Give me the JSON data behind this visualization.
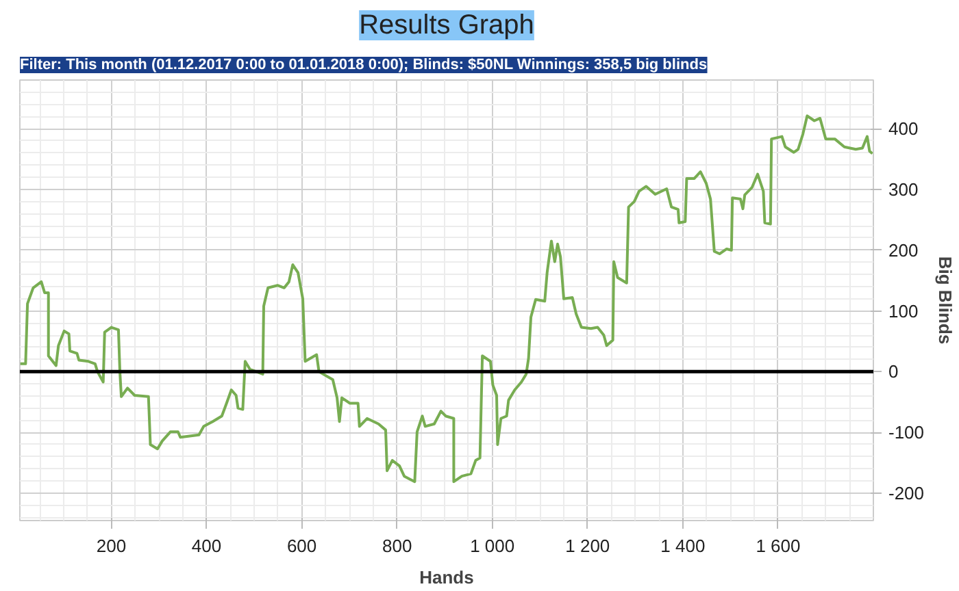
{
  "chart_data": {
    "type": "line",
    "title": "Results Graph",
    "subtitle": "Filter: This month (01.12.2017 0:00 to 01.01.2018 0:00); Blinds: $50NL Winnings: 358,5 big blinds",
    "xlabel": "Hands",
    "ylabel": "Big Blinds",
    "x": [
      9,
      20,
      24,
      36,
      53,
      60,
      68,
      68,
      84,
      89,
      101,
      111,
      113,
      128,
      132,
      152,
      166,
      171,
      183,
      186,
      200,
      215,
      218,
      221,
      234,
      249,
      278,
      282,
      297,
      307,
      324,
      340,
      345,
      384,
      394,
      413,
      432,
      442,
      452,
      462,
      466,
      476,
      481,
      491,
      518,
      520,
      529,
      549,
      563,
      573,
      581,
      592,
      602,
      607,
      631,
      636,
      665,
      674,
      679,
      684,
      701,
      718,
      721,
      737,
      761,
      776,
      779,
      790,
      805,
      815,
      837,
      842,
      853,
      859,
      878,
      892,
      902,
      919,
      919,
      936,
      955,
      965,
      974,
      979,
      996,
      1001,
      1009,
      1011,
      1018,
      1030,
      1034,
      1047,
      1061,
      1071,
      1076,
      1081,
      1091,
      1110,
      1115,
      1124,
      1131,
      1137,
      1143,
      1150,
      1168,
      1176,
      1187,
      1207,
      1221,
      1234,
      1240,
      1253,
      1255,
      1263,
      1282,
      1286,
      1298,
      1308,
      1323,
      1342,
      1366,
      1376,
      1390,
      1392,
      1405,
      1408,
      1424,
      1437,
      1449,
      1458,
      1466,
      1477,
      1492,
      1502,
      1504,
      1521,
      1526,
      1530,
      1545,
      1557,
      1569,
      1572,
      1584,
      1586,
      1608,
      1615,
      1633,
      1642,
      1652,
      1661,
      1676,
      1688,
      1700,
      1719,
      1739,
      1763,
      1777,
      1787,
      1792,
      1798
    ],
    "series": [
      {
        "color": "#78ad52",
        "values": [
          13,
          13,
          112,
          138,
          148,
          130,
          130,
          26,
          10,
          43,
          67,
          62,
          34,
          30,
          19,
          17,
          13,
          0,
          -17,
          65,
          73,
          69,
          0,
          -41,
          -27,
          -39,
          -41,
          -120,
          -127,
          -114,
          -99,
          -99,
          -108,
          -104,
          -90,
          -82,
          -73,
          -52,
          -30,
          -39,
          -60,
          -62,
          17,
          4,
          -4,
          108,
          138,
          142,
          138,
          148,
          176,
          163,
          120,
          17,
          28,
          0,
          -13,
          -43,
          -82,
          -43,
          -52,
          -52,
          -90,
          -77,
          -86,
          -96,
          -163,
          -146,
          -155,
          -172,
          -181,
          -99,
          -73,
          -90,
          -86,
          -65,
          -73,
          -77,
          -181,
          -172,
          -168,
          -146,
          -142,
          26,
          17,
          -22,
          -39,
          -120,
          -77,
          -73,
          -47,
          -30,
          -17,
          -4,
          22,
          90,
          119,
          116,
          163,
          215,
          181,
          210,
          189,
          120,
          122,
          95,
          73,
          71,
          73,
          60,
          43,
          52,
          181,
          155,
          146,
          271,
          280,
          297,
          305,
          292,
          301,
          271,
          267,
          245,
          247,
          318,
          318,
          329,
          310,
          284,
          198,
          194,
          202,
          200,
          286,
          284,
          268,
          291,
          303,
          325,
          297,
          245,
          243,
          383,
          387,
          370,
          361,
          366,
          391,
          421,
          413,
          417,
          383,
          383,
          370,
          366,
          368,
          387,
          363,
          359
        ]
      }
    ],
    "xlim": [
      8,
      1800
    ],
    "ylim": [
      -245,
      480
    ],
    "xticks": [
      200,
      400,
      600,
      800,
      {
        "value": 1000,
        "label": "1 000"
      },
      {
        "value": 1200,
        "label": "1 200"
      },
      {
        "value": 1400,
        "label": "1 400"
      },
      {
        "value": 1600,
        "label": "1 600"
      }
    ],
    "yticks": [
      -200,
      -100,
      0,
      100,
      200,
      300,
      400
    ],
    "ref_lines": [
      {
        "axis": "y",
        "value": 0,
        "color": "#000000"
      }
    ],
    "grid": true,
    "line_style": "solid"
  }
}
